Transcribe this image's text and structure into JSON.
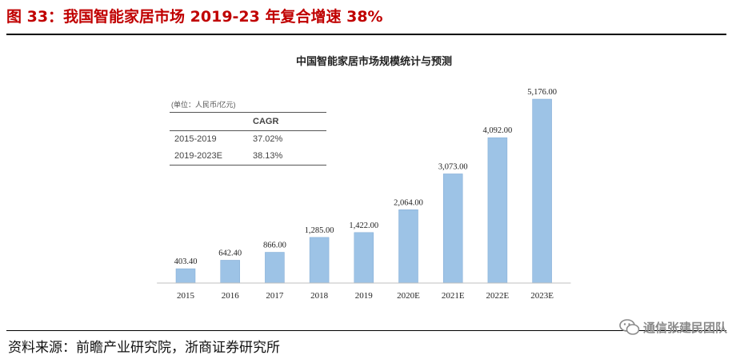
{
  "figure": {
    "title": "图 33：我国智能家居市场 2019-23 年复合增速 38%",
    "source": "资料来源：前瞻产业研究院，浙商证券研究所",
    "watermark": "通信张建民团队"
  },
  "cagr_table": {
    "unit": "(单位：人民币/亿元)",
    "header": "CAGR",
    "rows": [
      {
        "period": "2015-2019",
        "value": "37.02%"
      },
      {
        "period": "2019-2023E",
        "value": "38.13%"
      }
    ]
  },
  "colors": {
    "title": "#c00000",
    "bar": "#9dc3e6",
    "bar_edge": "#7fa9d4"
  },
  "chart_data": {
    "type": "bar",
    "title": "中国智能家居市场规模统计与预测",
    "categories": [
      "2015",
      "2016",
      "2017",
      "2018",
      "2019",
      "2020E",
      "2021E",
      "2022E",
      "2023E"
    ],
    "values": [
      403.4,
      642.4,
      866.0,
      1285.0,
      1422.0,
      2064.0,
      3073.0,
      4092.0,
      5176.0
    ],
    "labels": [
      "403.40",
      "642.40",
      "866.00",
      "1,285.00",
      "1,422.00",
      "2,064.00",
      "3,073.00",
      "4,092.00",
      "5,176.00"
    ],
    "xlabel": "",
    "ylabel": "",
    "ylim": [
      0,
      5176
    ]
  }
}
